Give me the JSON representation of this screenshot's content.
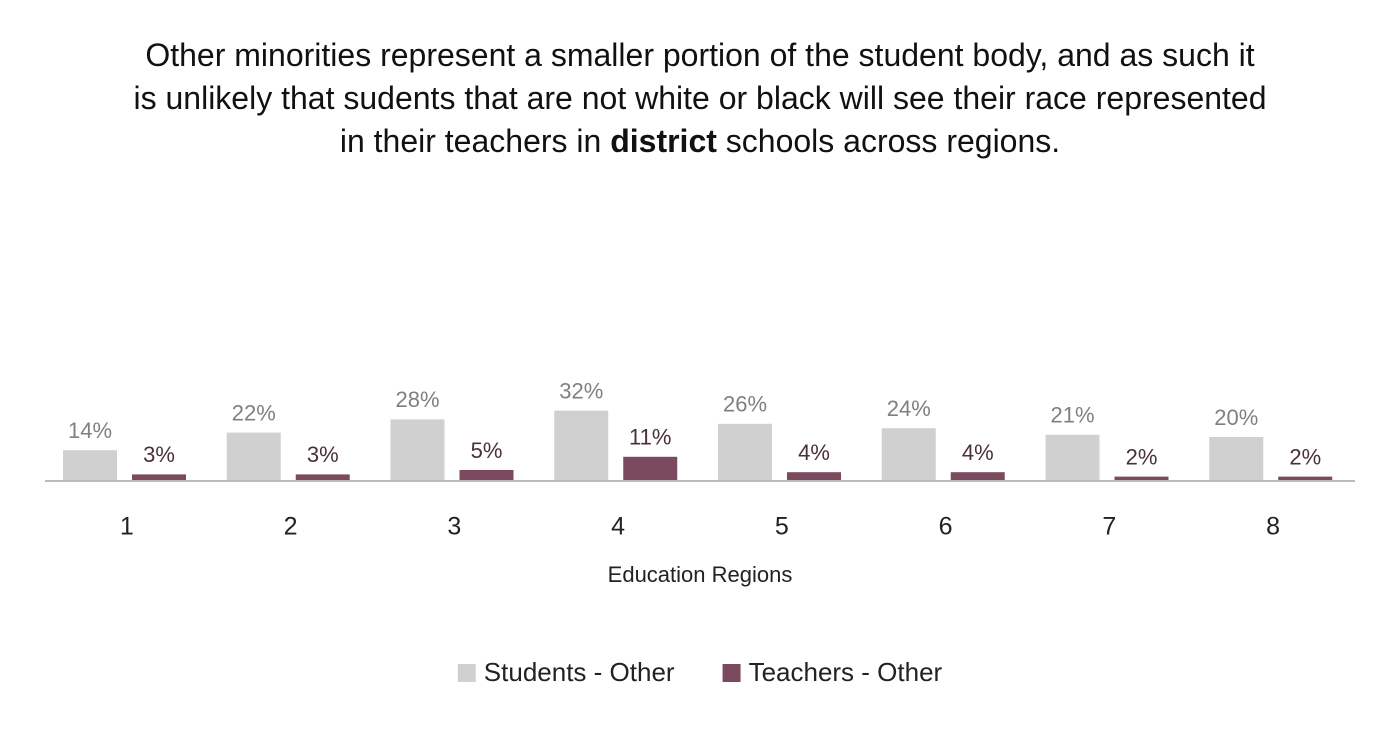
{
  "chart_data": {
    "type": "bar",
    "title": [
      {
        "text": "Other minorities represent a smaller portion of the student body, and as such it is unlikely that sudents that are not white or black will see their race represented in their teachers in ",
        "bold": false
      },
      {
        "text": "district",
        "bold": true
      },
      {
        "text": " schools across regions.",
        "bold": false
      }
    ],
    "x_label": "Education Regions",
    "categories": [
      "1",
      "2",
      "3",
      "4",
      "5",
      "6",
      "7",
      "8"
    ],
    "series": [
      {
        "name": "Students - Other",
        "color": "#d0d0d0",
        "label_color": "#808080",
        "values": [
          14,
          22,
          28,
          32,
          26,
          24,
          21,
          20
        ],
        "value_labels": [
          "14%",
          "22%",
          "28%",
          "32%",
          "26%",
          "24%",
          "21%",
          "20%"
        ]
      },
      {
        "name": "Teachers - Other",
        "color": "#7b4a5e",
        "label_color": "#4a3038",
        "values": [
          3,
          3,
          5,
          11,
          4,
          4,
          2,
          2
        ],
        "value_labels": [
          "3%",
          "3%",
          "5%",
          "11%",
          "4%",
          "4%",
          "2%",
          "2%"
        ]
      }
    ],
    "legend": "bottom"
  }
}
